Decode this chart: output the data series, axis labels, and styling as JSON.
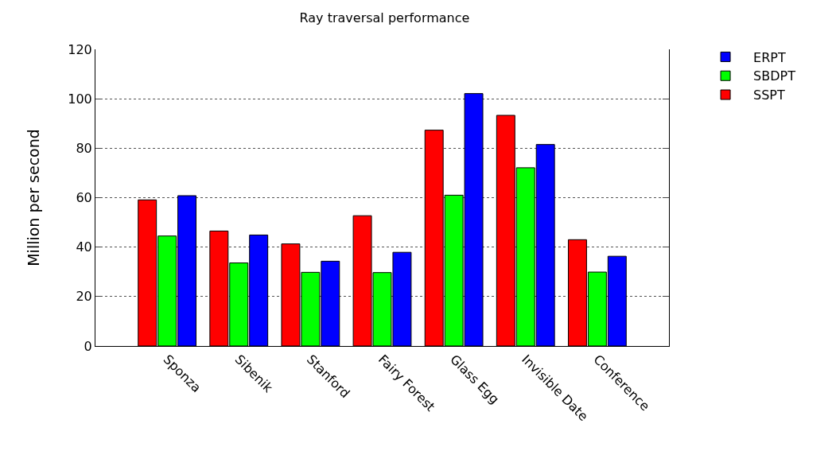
{
  "chart_data": {
    "type": "bar",
    "title": "Ray traversal performance",
    "ylabel": "Million per second",
    "categories": [
      "Sponza",
      "Sibenik",
      "Stanford",
      "Fairy Forest",
      "Glass Egg",
      "Invisible Date",
      "Conference"
    ],
    "series": [
      {
        "name": "SSPT",
        "color": "#ff0000",
        "values": [
          59.1,
          46.5,
          41.3,
          52.7,
          87.3,
          93.3,
          43.0
        ]
      },
      {
        "name": "SBDPT",
        "color": "#00ff00",
        "values": [
          44.5,
          33.6,
          29.8,
          29.7,
          61.0,
          72.1,
          29.9
        ]
      },
      {
        "name": "ERPT",
        "color": "#0000ff",
        "values": [
          60.8,
          44.9,
          34.3,
          37.9,
          102.1,
          81.5,
          36.3
        ]
      }
    ],
    "ylim": [
      0,
      120
    ],
    "yticks": [
      0,
      20,
      40,
      60,
      80,
      100,
      120
    ],
    "grid": "y",
    "legend": "top right"
  }
}
